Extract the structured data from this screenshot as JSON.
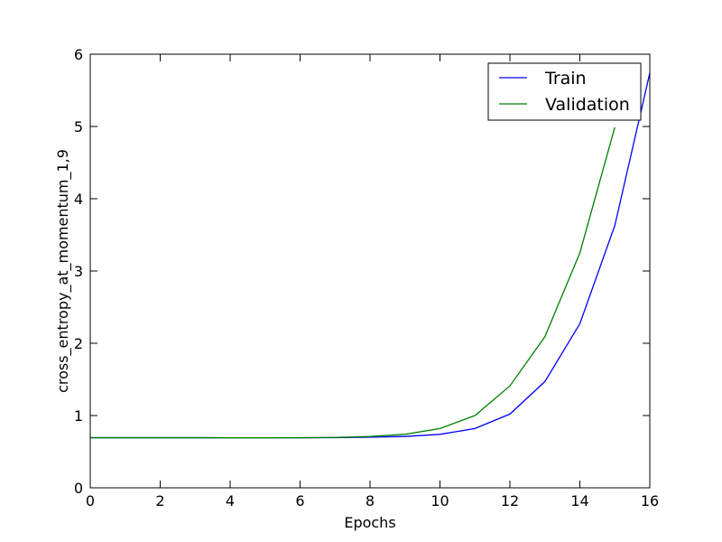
{
  "chart_data": {
    "type": "line",
    "xlabel": "Epochs",
    "ylabel": "cross_entropy_at_momentum_1,9",
    "xlim": [
      0,
      16
    ],
    "ylim": [
      0,
      6
    ],
    "xticks": [
      "0",
      "2",
      "4",
      "6",
      "8",
      "10",
      "12",
      "14",
      "16"
    ],
    "yticks": [
      "0",
      "1",
      "2",
      "3",
      "4",
      "5",
      "6"
    ],
    "grid": false,
    "legend_position": "upper-right",
    "series": [
      {
        "name": "Train",
        "color": "#0000ff",
        "x": [
          0,
          1,
          2,
          3,
          4,
          5,
          6,
          7,
          8,
          9,
          10,
          11,
          12,
          13,
          14,
          15,
          16
        ],
        "y": [
          0.693,
          0.693,
          0.693,
          0.693,
          0.692,
          0.692,
          0.692,
          0.694,
          0.7,
          0.71,
          0.74,
          0.82,
          1.02,
          1.47,
          2.27,
          3.63,
          5.74
        ]
      },
      {
        "name": "Validation",
        "color": "#008000",
        "x": [
          0,
          1,
          2,
          3,
          4,
          5,
          6,
          7,
          8,
          9,
          10,
          11,
          12,
          13,
          14,
          15
        ],
        "y": [
          0.693,
          0.693,
          0.693,
          0.693,
          0.692,
          0.692,
          0.693,
          0.697,
          0.71,
          0.74,
          0.82,
          1.0,
          1.41,
          2.09,
          3.25,
          4.99
        ]
      }
    ]
  }
}
